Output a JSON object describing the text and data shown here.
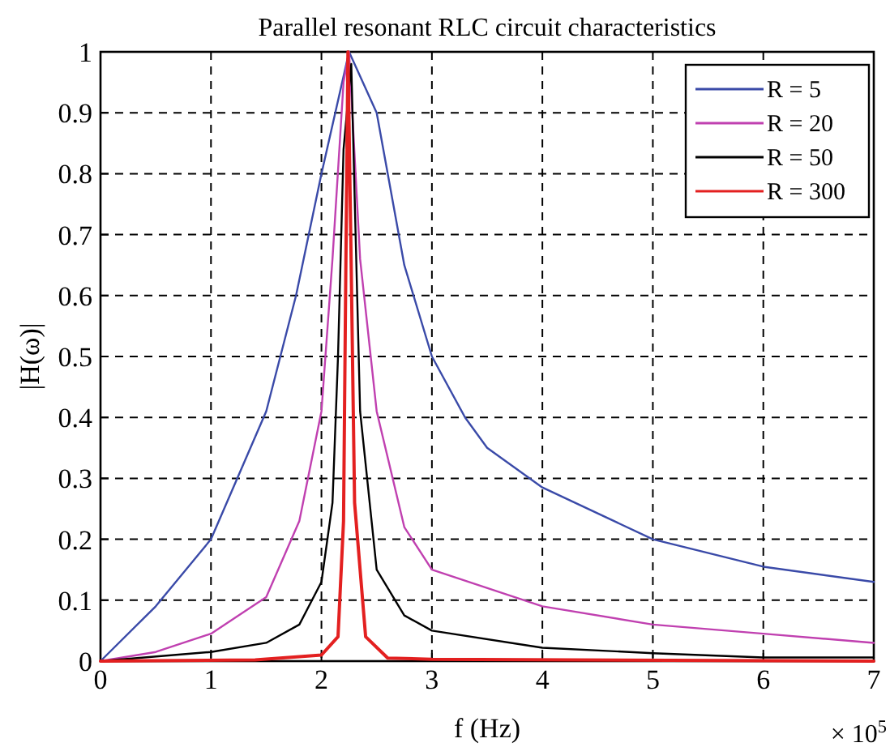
{
  "chart_data": {
    "type": "line",
    "title": "Parallel resonant RLC circuit characteristics",
    "xlabel": "f (Hz)",
    "ylabel": "|H(ω)|",
    "annotations": [
      "× 10$^{5}$"
    ],
    "xlim": [
      0,
      7
    ],
    "xticks": [
      0,
      1,
      2,
      3,
      4,
      5,
      6,
      7
    ],
    "ylim": [
      0,
      1
    ],
    "yticks": [
      0,
      0.1,
      0.2,
      0.3,
      0.4,
      0.5,
      0.6,
      0.7,
      0.8,
      0.9,
      1
    ],
    "grid": true,
    "legend": "top right",
    "line_style": "solid",
    "marker": "none",
    "series": [
      {
        "name": "R = 5",
        "color": "#3a4aa8",
        "x": [
          0,
          0.5,
          1,
          1.5,
          1.77,
          2,
          2.25,
          2.5,
          2.75,
          3,
          3.3,
          3.5,
          4,
          5,
          6,
          7
        ],
        "values": [
          0,
          0.09,
          0.2,
          0.41,
          0.6,
          0.8,
          1,
          0.9,
          0.65,
          0.5,
          0.4,
          0.35,
          0.285,
          0.2,
          0.155,
          0.13
        ]
      },
      {
        "name": "R = 20",
        "color": "#c040b0",
        "x": [
          0,
          0.5,
          1,
          1.5,
          1.8,
          2,
          2.1,
          2.2,
          2.25,
          2.35,
          2.5,
          2.75,
          3,
          4,
          5,
          6,
          7
        ],
        "values": [
          0,
          0.015,
          0.045,
          0.105,
          0.23,
          0.41,
          0.66,
          0.95,
          1,
          0.66,
          0.41,
          0.22,
          0.15,
          0.09,
          0.06,
          0.045,
          0.03
        ]
      },
      {
        "name": "R = 50",
        "color": "#000000",
        "x": [
          0,
          1,
          1.5,
          1.8,
          2,
          2.1,
          2.15,
          2.2,
          2.27,
          2.35,
          2.5,
          2.75,
          3,
          4,
          5,
          6,
          7
        ],
        "values": [
          0,
          0.015,
          0.03,
          0.06,
          0.13,
          0.26,
          0.5,
          0.84,
          0.98,
          0.41,
          0.15,
          0.075,
          0.05,
          0.022,
          0.013,
          0.006,
          0.006
        ]
      },
      {
        "name": "R = 300",
        "color": "#e32020",
        "x": [
          0,
          1.4,
          2,
          2.15,
          2.2,
          2.22,
          2.24,
          2.27,
          2.3,
          2.4,
          2.6,
          3,
          7
        ],
        "values": [
          0,
          0.002,
          0.01,
          0.04,
          0.23,
          0.63,
          1,
          0.64,
          0.26,
          0.04,
          0.005,
          0.003,
          0
        ]
      }
    ]
  }
}
